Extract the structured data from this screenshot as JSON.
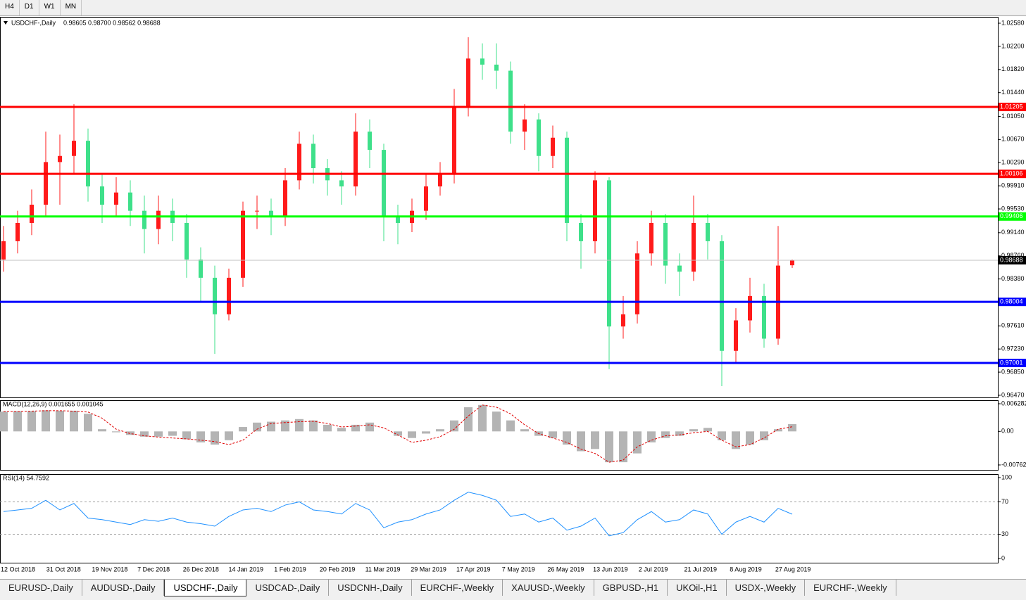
{
  "toolbar": {
    "timeframes": [
      "H4",
      "D1",
      "W1",
      "MN"
    ]
  },
  "chart_data": [
    {
      "type": "candlestick",
      "title": "USDCHF-,Daily",
      "subtitle": "0.98605 0.98700 0.98562 0.98688",
      "open": [
        0.987,
        0.99,
        0.993,
        0.996,
        1.003,
        1.004,
        1.0065,
        0.999,
        0.996,
        0.998,
        0.995,
        0.992,
        0.995,
        0.993,
        0.987,
        0.984,
        0.978,
        0.984,
        0.995,
        0.995,
        0.994,
        1.0,
        1.006,
        1.002,
        1.0,
        0.999,
        1.008,
        1.005,
        0.994,
        0.993,
        0.995,
        0.999,
        1.001,
        1.012,
        1.02,
        1.019,
        1.018,
        1.008,
        1.01,
        1.004,
        1.007,
        0.993,
        0.99,
        1.0,
        0.976,
        0.978,
        0.988,
        0.993,
        0.986,
        0.985,
        0.993,
        0.99,
        0.972,
        0.977,
        0.981,
        0.974,
        0.98605
      ],
      "high": [
        0.9925,
        0.995,
        0.9985,
        1.008,
        1.0075,
        1.0125,
        1.0085,
        1.001,
        1.0005,
        1.0,
        0.9975,
        0.9975,
        0.997,
        0.9945,
        0.989,
        0.986,
        0.9855,
        0.9965,
        0.9975,
        0.997,
        1.002,
        1.008,
        1.0075,
        1.0035,
        1.0015,
        1.011,
        1.01,
        1.006,
        0.996,
        0.997,
        1.001,
        1.003,
        1.015,
        1.0235,
        1.0225,
        1.0225,
        1.0195,
        1.0125,
        1.011,
        1.009,
        1.008,
        0.9945,
        1.0015,
        1.0005,
        0.981,
        0.99,
        0.995,
        0.9945,
        0.988,
        0.9975,
        0.9945,
        0.991,
        0.979,
        0.984,
        0.983,
        0.9925,
        0.987
      ],
      "low": [
        0.985,
        0.988,
        0.991,
        0.994,
        0.996,
        1.001,
        0.9965,
        0.993,
        0.994,
        0.9925,
        0.988,
        0.9895,
        0.99,
        0.984,
        0.98,
        0.9715,
        0.977,
        0.9825,
        0.992,
        0.991,
        0.9925,
        0.9985,
        0.9995,
        0.9975,
        0.996,
        0.9975,
        1.002,
        0.99,
        0.9895,
        0.9915,
        0.9935,
        0.9975,
        0.9995,
        1.0105,
        1.0165,
        1.015,
        1.006,
        1.005,
        1.0015,
        1.002,
        0.99,
        0.9855,
        0.988,
        0.969,
        0.974,
        0.9765,
        0.986,
        0.983,
        0.981,
        0.9835,
        0.987,
        0.9662,
        0.97,
        0.975,
        0.9725,
        0.973,
        0.98562
      ],
      "close": [
        0.99,
        0.993,
        0.996,
        1.003,
        1.004,
        1.0065,
        0.999,
        0.996,
        0.998,
        0.995,
        0.992,
        0.995,
        0.993,
        0.987,
        0.984,
        0.978,
        0.984,
        0.995,
        0.995,
        0.994,
        1.0,
        1.006,
        1.002,
        1.0,
        0.999,
        1.008,
        1.005,
        0.994,
        0.993,
        0.995,
        0.999,
        1.001,
        1.012,
        1.02,
        1.019,
        1.018,
        1.008,
        1.01,
        1.004,
        1.007,
        0.993,
        0.99,
        1.0,
        0.976,
        0.978,
        0.988,
        0.993,
        0.986,
        0.985,
        0.993,
        0.99,
        0.972,
        0.977,
        0.981,
        0.974,
        0.986,
        0.98688
      ],
      "up_color": "#ff1a1a",
      "down_color": "#3ee08a",
      "ylim": [
        0.96435,
        1.02684
      ],
      "yticks": [
        {
          "value": 1.0258,
          "label": "1.02580"
        },
        {
          "value": 1.022,
          "label": "1.02200"
        },
        {
          "value": 1.0182,
          "label": "1.01820"
        },
        {
          "value": 1.0144,
          "label": "1.01440"
        },
        {
          "value": 1.0105,
          "label": "1.01050"
        },
        {
          "value": 1.0067,
          "label": "1.00670"
        },
        {
          "value": 1.0029,
          "label": "1.00290"
        },
        {
          "value": 0.9991,
          "label": "0.99910"
        },
        {
          "value": 0.9953,
          "label": "0.99530"
        },
        {
          "value": 0.9914,
          "label": "0.99140"
        },
        {
          "value": 0.9876,
          "label": "0.98760"
        },
        {
          "value": 0.9838,
          "label": "0.98380"
        },
        {
          "value": 0.9761,
          "label": "0.97610"
        },
        {
          "value": 0.9723,
          "label": "0.97230"
        },
        {
          "value": 0.9685,
          "label": "0.96850"
        },
        {
          "value": 0.9647,
          "label": "0.96470"
        }
      ],
      "x_tick_labels": [
        "12 Oct 2018",
        "31 Oct 2018",
        "19 Nov 2018",
        "7 Dec 2018",
        "26 Dec 2018",
        "14 Jan 2019",
        "1 Feb 2019",
        "20 Feb 2019",
        "11 Mar 2019",
        "29 Mar 2019",
        "17 Apr 2019",
        "7 May 2019",
        "26 May 2019",
        "13 Jun 2019",
        "2 Jul 2019",
        "21 Jul 2019",
        "8 Aug 2019",
        "27 Aug 2019"
      ],
      "levels": [
        {
          "value": 1.01205,
          "color": "#ff0000"
        },
        {
          "value": 1.00106,
          "color": "#ff0000"
        },
        {
          "value": 0.99406,
          "color": "#00ff00"
        },
        {
          "value": 0.98004,
          "color": "#0000ff"
        },
        {
          "value": 0.97001,
          "color": "#0000ff"
        }
      ],
      "current_price": 0.98688
    },
    {
      "type": "macd",
      "title": "MACD(12,26,9) 0.001655 0.001045",
      "histogram": {
        "color": "#b4b4b4",
        "values": [
          0.0045,
          0.0046,
          0.0046,
          0.0048,
          0.0047,
          0.0047,
          0.004,
          0.0005,
          -0.0002,
          -0.0008,
          -0.0012,
          -0.0012,
          -0.001,
          -0.0018,
          -0.0025,
          -0.003,
          -0.002,
          0.001,
          0.002,
          0.0022,
          0.0025,
          0.0028,
          0.0025,
          0.0015,
          0.0008,
          0.0015,
          0.002,
          0.0,
          -0.001,
          -0.0015,
          -0.0005,
          0.0005,
          0.0025,
          0.0055,
          0.006,
          0.0045,
          0.0025,
          0.0005,
          -0.001,
          -0.0015,
          -0.003,
          -0.0045,
          -0.004,
          -0.007,
          -0.007,
          -0.005,
          -0.0025,
          -0.0015,
          -0.001,
          0.0005,
          0.0008,
          -0.002,
          -0.004,
          -0.003,
          -0.002,
          0.0005,
          0.001655
        ]
      },
      "signal": {
        "color": "#e00000",
        "values": [
          0.0045,
          0.0045,
          0.0046,
          0.0047,
          0.0047,
          0.0046,
          0.0044,
          0.003,
          0.0005,
          -0.0005,
          -0.001,
          -0.0013,
          -0.0015,
          -0.0017,
          -0.002,
          -0.0023,
          -0.003,
          -0.002,
          0.0005,
          0.0018,
          0.002,
          0.0022,
          0.0023,
          0.0018,
          0.001,
          0.0012,
          0.0015,
          0.0008,
          -0.0008,
          -0.0025,
          -0.002,
          -0.0012,
          0.0005,
          0.0035,
          0.006,
          0.0055,
          0.004,
          0.0015,
          -0.0005,
          -0.0015,
          -0.0025,
          -0.004,
          -0.005,
          -0.007,
          -0.0065,
          -0.0035,
          -0.002,
          -0.001,
          -0.0008,
          -0.0003,
          0.0,
          -0.002,
          -0.0035,
          -0.003,
          -0.0015,
          0.0005,
          0.001045
        ]
      },
      "ylim": [
        -0.00874,
        0.00708
      ],
      "yticks": [
        0.006282,
        {
          "value": 0,
          "label": "0.00"
        },
        -0.00762
      ]
    },
    {
      "type": "line",
      "title": "RSI(14) 54.7592",
      "color": "#1e90ff",
      "values": [
        58,
        60,
        62,
        72,
        60,
        68,
        50,
        48,
        45,
        42,
        48,
        46,
        50,
        45,
        43,
        40,
        52,
        60,
        62,
        58,
        66,
        70,
        60,
        58,
        55,
        68,
        60,
        38,
        45,
        48,
        55,
        60,
        72,
        82,
        78,
        72,
        52,
        55,
        45,
        50,
        35,
        40,
        50,
        28,
        32,
        48,
        58,
        45,
        48,
        60,
        55,
        30,
        45,
        52,
        45,
        62,
        54.7592
      ],
      "ylim": [
        -5.2,
        104.3
      ],
      "yticks": [
        100,
        70,
        30,
        0
      ],
      "levels": [
        70,
        30
      ]
    }
  ],
  "tabs": {
    "items": [
      "EURUSD-,Daily",
      "AUDUSD-,Daily",
      "USDCHF-,Daily",
      "USDCAD-,Daily",
      "USDCNH-,Daily",
      "EURCHF-,Weekly",
      "XAUUSD-,Weekly",
      "GBPUSD-,H1",
      "UKOil-,H1",
      "USDX-,Weekly",
      "EURCHF-,Weekly"
    ],
    "active": 2
  }
}
